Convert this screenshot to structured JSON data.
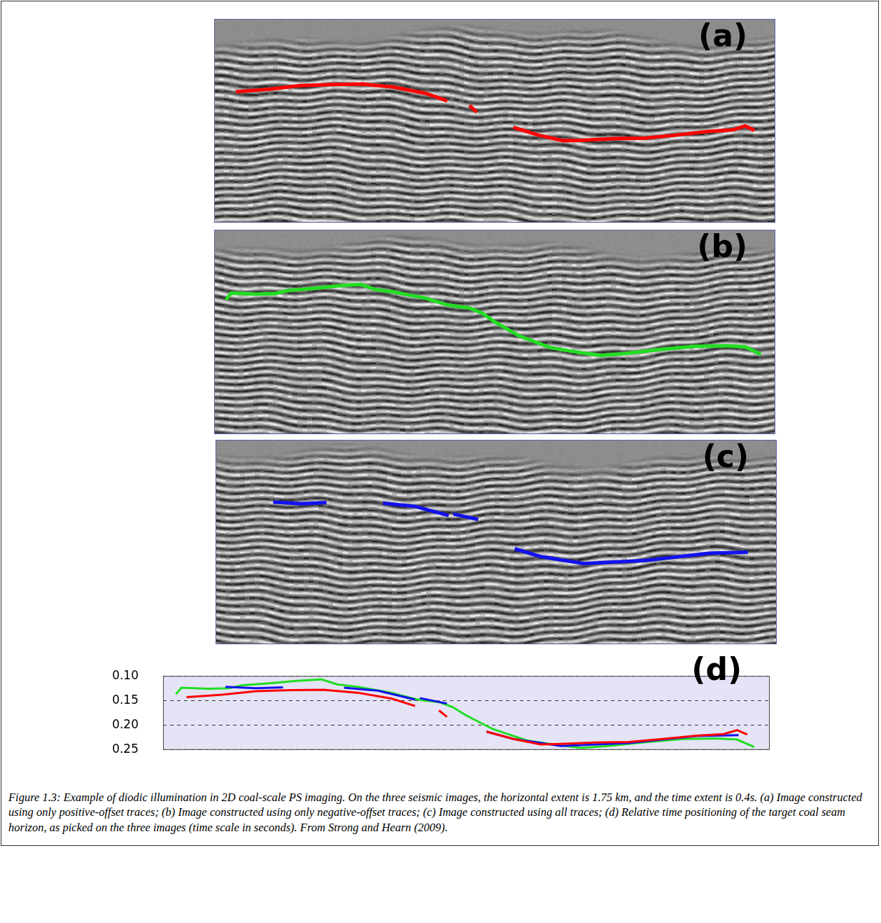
{
  "chart_data": [
    {
      "type": "line",
      "title": "(a)",
      "xlim": [
        0,
        1.75
      ],
      "ylim": [
        0.4,
        0
      ],
      "tick_labels": false,
      "grid": false,
      "series": [
        {
          "color": "#ff0000",
          "x": [
            0.068,
            0.17,
            0.268,
            0.366,
            0.463,
            0.561,
            0.659,
            0.727,
            0.757,
            0.796,
            0.819,
            0.874,
            0.933,
            1.011,
            1.089,
            1.148,
            1.245,
            1.343,
            1.441,
            1.539,
            1.617,
            1.656,
            1.685
          ],
          "values": [
            0.143,
            0.138,
            0.131,
            0.129,
            0.128,
            0.134,
            0.146,
            0.161,
            null,
            0.17,
            0.183,
            null,
            0.213,
            0.228,
            0.239,
            0.238,
            0.235,
            0.234,
            0.228,
            0.221,
            0.218,
            0.21,
            0.219
          ]
        }
      ]
    },
    {
      "type": "line",
      "title": "(b)",
      "xlim": [
        0,
        1.75
      ],
      "ylim": [
        0.4,
        0
      ],
      "tick_labels": false,
      "grid": false,
      "series": [
        {
          "color": "#22dd22",
          "x": [
            0.037,
            0.053,
            0.131,
            0.19,
            0.229,
            0.307,
            0.385,
            0.457,
            0.502,
            0.561,
            0.659,
            0.727,
            0.757,
            0.796,
            0.835,
            0.874,
            0.952,
            1.05,
            1.148,
            1.206,
            1.284,
            1.382,
            1.5,
            1.597,
            1.656,
            1.705
          ],
          "values": [
            0.137,
            0.124,
            0.126,
            0.125,
            0.119,
            0.115,
            0.11,
            0.107,
            0.117,
            0.122,
            0.134,
            0.147,
            0.15,
            0.153,
            0.163,
            0.18,
            0.208,
            0.231,
            0.241,
            0.246,
            0.242,
            0.235,
            0.228,
            0.227,
            0.229,
            0.244
          ]
        }
      ]
    },
    {
      "type": "line",
      "title": "(c)",
      "xlim": [
        0,
        1.75
      ],
      "ylim": [
        0.4,
        0
      ],
      "tick_labels": false,
      "grid": false,
      "series": [
        {
          "color": "#1111ee",
          "x": [
            0.18,
            0.268,
            0.346,
            0.4,
            0.522,
            0.62,
            0.727,
            0.734,
            0.741,
            0.819,
            0.87,
            0.933,
            1.011,
            1.148,
            1.343,
            1.539,
            1.66
          ],
          "values": [
            0.122,
            0.125,
            0.123,
            null,
            0.124,
            0.13,
            0.148,
            null,
            0.145,
            0.156,
            null,
            0.213,
            0.228,
            0.242,
            0.236,
            0.222,
            0.22
          ]
        }
      ]
    },
    {
      "type": "line",
      "title": "(d)",
      "xlim": [
        0,
        1.75
      ],
      "ylim": [
        0.25,
        0.1
      ],
      "tick_labels": "y",
      "grid": true,
      "yticks": [
        {
          "value": 0.1,
          "label": "0.10"
        },
        0.15,
        {
          "value": 0.2,
          "label": "0.20"
        },
        0.25
      ],
      "series": [
        {
          "color": "#ff0000",
          "x": [
            0.068,
            0.17,
            0.268,
            0.366,
            0.463,
            0.561,
            0.659,
            0.727,
            0.757,
            0.796,
            0.819,
            0.874,
            0.933,
            1.011,
            1.089,
            1.148,
            1.245,
            1.343,
            1.441,
            1.539,
            1.617,
            1.656,
            1.685
          ],
          "values": [
            0.143,
            0.138,
            0.131,
            0.129,
            0.128,
            0.134,
            0.146,
            0.161,
            null,
            0.17,
            0.183,
            null,
            0.213,
            0.228,
            0.239,
            0.238,
            0.235,
            0.234,
            0.228,
            0.221,
            0.218,
            0.21,
            0.219
          ]
        },
        {
          "color": "#1111ee",
          "x": [
            0.18,
            0.268,
            0.346,
            0.4,
            0.522,
            0.62,
            0.727,
            0.734,
            0.741,
            0.819,
            0.87,
            0.933,
            1.011,
            1.148,
            1.343,
            1.539,
            1.66
          ],
          "values": [
            0.122,
            0.125,
            0.123,
            null,
            0.124,
            0.13,
            0.148,
            null,
            0.145,
            0.156,
            null,
            0.213,
            0.228,
            0.242,
            0.236,
            0.222,
            0.22
          ]
        },
        {
          "color": "#22dd22",
          "x": [
            0.037,
            0.053,
            0.131,
            0.19,
            0.229,
            0.307,
            0.385,
            0.457,
            0.502,
            0.561,
            0.659,
            0.727,
            0.757,
            0.796,
            0.835,
            0.874,
            0.952,
            1.05,
            1.148,
            1.206,
            1.284,
            1.382,
            1.5,
            1.597,
            1.656,
            1.705
          ],
          "values": [
            0.137,
            0.124,
            0.126,
            0.125,
            0.119,
            0.115,
            0.11,
            0.107,
            0.117,
            0.122,
            0.134,
            0.147,
            0.15,
            0.153,
            0.163,
            0.18,
            0.208,
            0.231,
            0.241,
            0.246,
            0.242,
            0.235,
            0.228,
            0.227,
            0.229,
            0.244
          ]
        }
      ]
    }
  ],
  "caption": "Figure 1.3:  Example of diodic illumination in 2D coal-scale PS imaging. On the three seismic images, the horizontal extent is 1.75 km, and the time extent is 0.4s. (a) Image constructed using only positive-offset traces; (b) Image constructed using only negative-offset traces; (c) Image constructed using all traces; (d) Relative time positioning of the target coal seam horizon, as picked on the three images (time scale in seconds). From Strong and Hearn (2009)."
}
